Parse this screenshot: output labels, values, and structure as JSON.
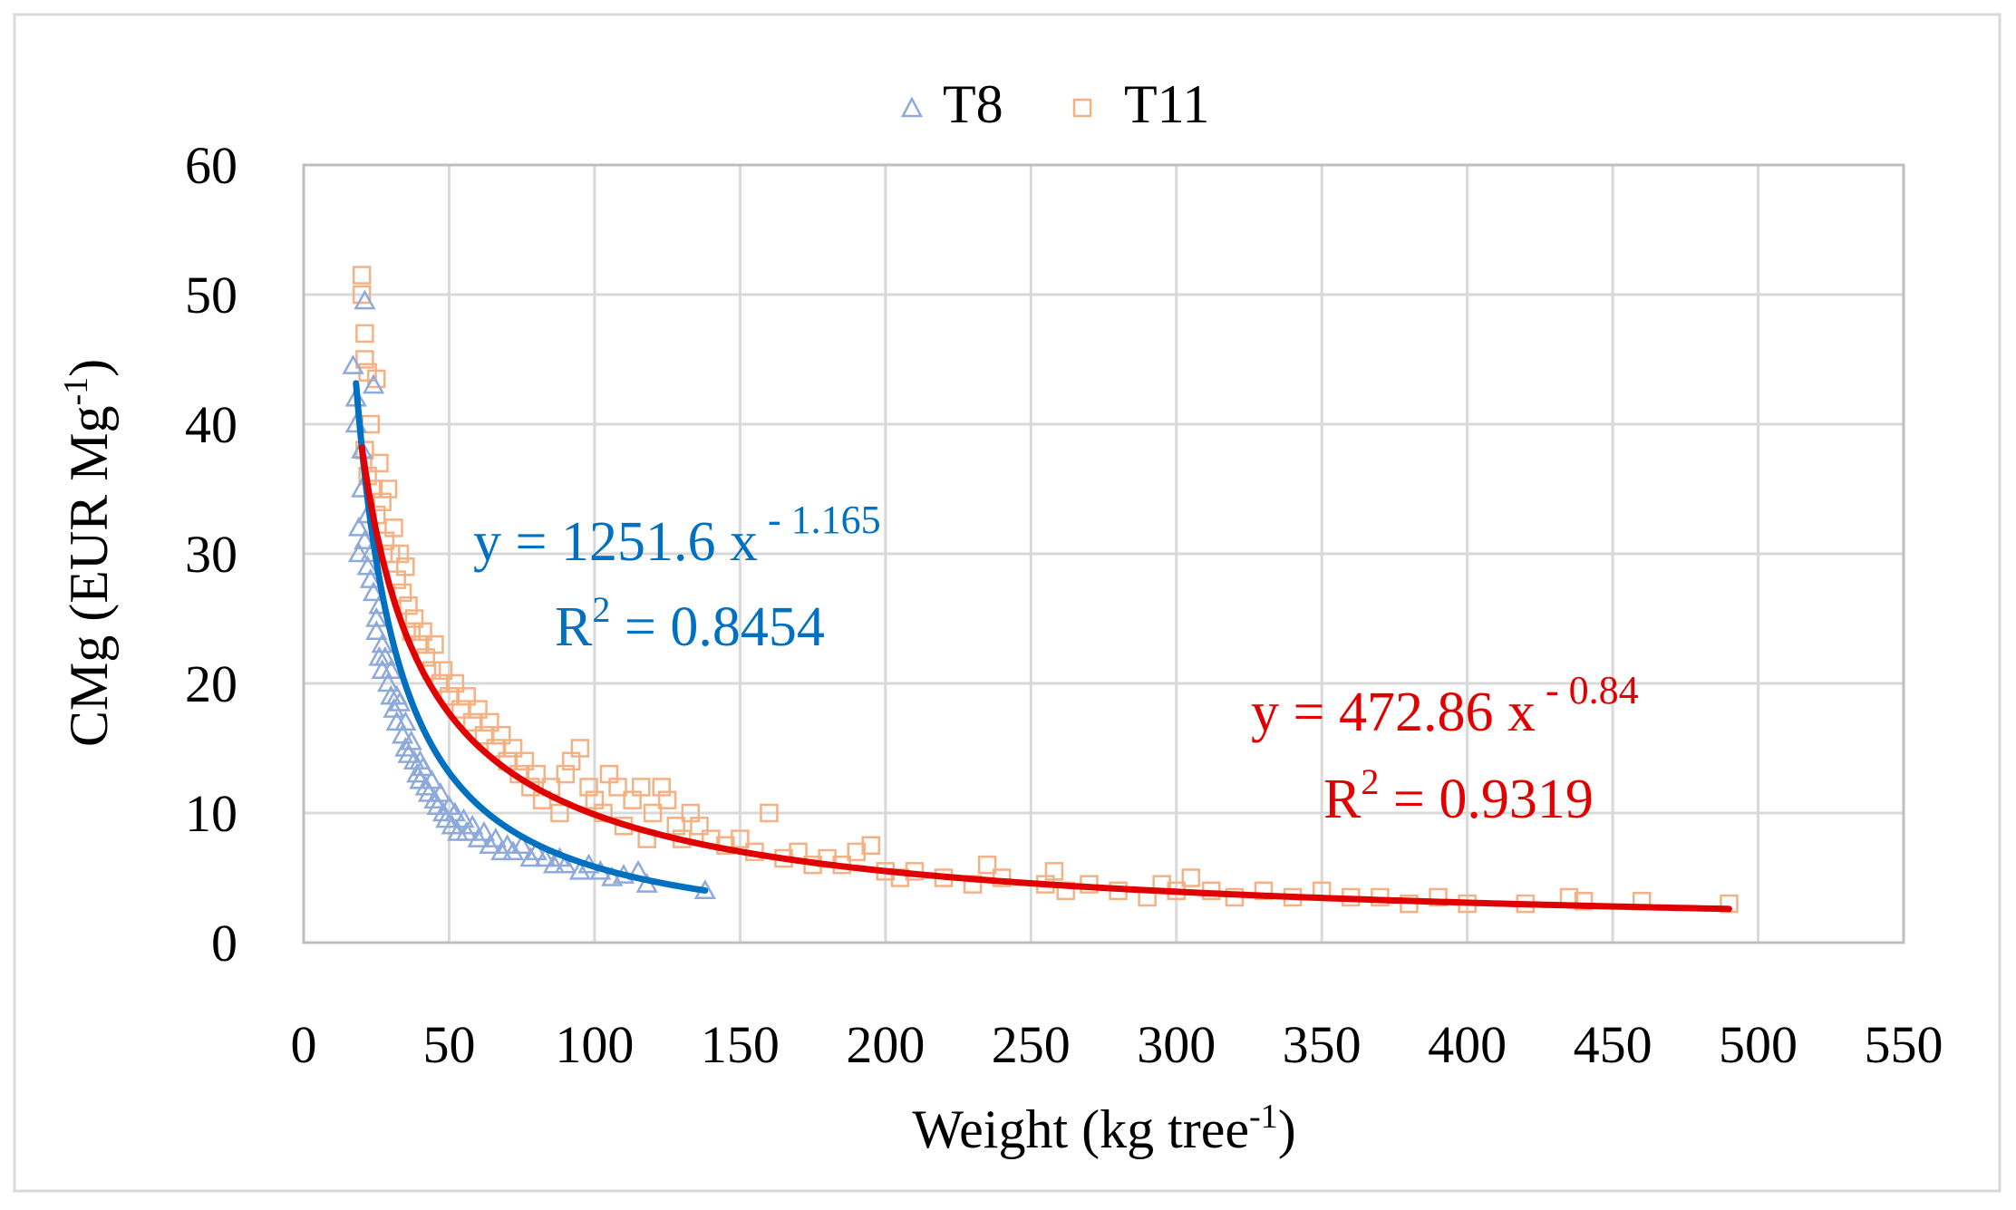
{
  "chart_data": {
    "type": "scatter",
    "title": "",
    "xlabel": "Weight (kg tree",
    "xlabel_sup": "-1",
    "xlabel_end": ")",
    "ylabel": "CMg (EUR Mg",
    "ylabel_sup": "-1",
    "ylabel_end": ")",
    "xlim": [
      0,
      550
    ],
    "ylim": [
      0,
      60
    ],
    "xticks": [
      "0",
      "50",
      "100",
      "150",
      "200",
      "250",
      "300",
      "350",
      "400",
      "450",
      "500",
      "550"
    ],
    "yticks": [
      "0",
      "10",
      "20",
      "30",
      "40",
      "50",
      "60"
    ],
    "grid": true,
    "legend_position": "top-center",
    "series": [
      {
        "name": "T8",
        "marker": "triangle",
        "color": "#8eaadb",
        "trend_color": "#0070c0",
        "trend": {
          "coef": 1251.6,
          "exp": -1.165,
          "x_from": 18,
          "x_to": 138
        },
        "equation_main": "y = 1251.6 x",
        "equation_sup": " - 1.165",
        "r2_label": "R",
        "r2_sup": "2",
        "r2_value": " = 0.8454",
        "points": [
          [
            17,
            44.5
          ],
          [
            18,
            42
          ],
          [
            18,
            40
          ],
          [
            19,
            32
          ],
          [
            19,
            30
          ],
          [
            20,
            38
          ],
          [
            20,
            35
          ],
          [
            21,
            49.5
          ],
          [
            21,
            31
          ],
          [
            22,
            29
          ],
          [
            22,
            33
          ],
          [
            23,
            28
          ],
          [
            23,
            30
          ],
          [
            24,
            27
          ],
          [
            24,
            43
          ],
          [
            25,
            25
          ],
          [
            25,
            24
          ],
          [
            26,
            26
          ],
          [
            26,
            22
          ],
          [
            27,
            23
          ],
          [
            27,
            21
          ],
          [
            28,
            22
          ],
          [
            29,
            20
          ],
          [
            30,
            21
          ],
          [
            30,
            19
          ],
          [
            31,
            18
          ],
          [
            32,
            19
          ],
          [
            32,
            17
          ],
          [
            33,
            18.5
          ],
          [
            34,
            16
          ],
          [
            35,
            17
          ],
          [
            35,
            15
          ],
          [
            36,
            14.5
          ],
          [
            37,
            15.5
          ],
          [
            38,
            14
          ],
          [
            39,
            13
          ],
          [
            40,
            12.5
          ],
          [
            40,
            14
          ],
          [
            41,
            13.5
          ],
          [
            42,
            12
          ],
          [
            43,
            11.5
          ],
          [
            44,
            12.5
          ],
          [
            45,
            11
          ],
          [
            46,
            10.5
          ],
          [
            47,
            11.5
          ],
          [
            48,
            10
          ],
          [
            49,
            9.5
          ],
          [
            50,
            10.5
          ],
          [
            51,
            9
          ],
          [
            52,
            10
          ],
          [
            53,
            8.5
          ],
          [
            55,
            9.5
          ],
          [
            56,
            8.5
          ],
          [
            58,
            9
          ],
          [
            60,
            8
          ],
          [
            62,
            8.5
          ],
          [
            64,
            7.5
          ],
          [
            66,
            8
          ],
          [
            68,
            7
          ],
          [
            70,
            7.5
          ],
          [
            72,
            7
          ],
          [
            75,
            7.5
          ],
          [
            78,
            6.5
          ],
          [
            80,
            7
          ],
          [
            83,
            6.5
          ],
          [
            86,
            6
          ],
          [
            88,
            6.5
          ],
          [
            90,
            6
          ],
          [
            95,
            5.5
          ],
          [
            98,
            6
          ],
          [
            102,
            5.5
          ],
          [
            106,
            5
          ],
          [
            110,
            5.2
          ],
          [
            115,
            5.5
          ],
          [
            118,
            4.5
          ],
          [
            138,
            4
          ]
        ]
      },
      {
        "name": "T11",
        "marker": "square",
        "color": "#f4b183",
        "trend_color": "#e00000",
        "trend": {
          "coef": 472.86,
          "exp": -0.84,
          "x_from": 20,
          "x_to": 490
        },
        "equation_main": "y = 472.86 x",
        "equation_sup": " - 0.84",
        "r2_label": "R",
        "r2_sup": "2",
        "r2_value": " = 0.9319",
        "points": [
          [
            20,
            51.5
          ],
          [
            20,
            50
          ],
          [
            21,
            47
          ],
          [
            21,
            45
          ],
          [
            22,
            44
          ],
          [
            21,
            38
          ],
          [
            22,
            36
          ],
          [
            23,
            40
          ],
          [
            24,
            35
          ],
          [
            25,
            43.5
          ],
          [
            25,
            33
          ],
          [
            26,
            37
          ],
          [
            27,
            34
          ],
          [
            28,
            31
          ],
          [
            29,
            35
          ],
          [
            30,
            30
          ],
          [
            31,
            32
          ],
          [
            32,
            28
          ],
          [
            33,
            30
          ],
          [
            34,
            27
          ],
          [
            35,
            29
          ],
          [
            36,
            26
          ],
          [
            37,
            24
          ],
          [
            38,
            25
          ],
          [
            40,
            23
          ],
          [
            41,
            24
          ],
          [
            42,
            22
          ],
          [
            44,
            21
          ],
          [
            45,
            23
          ],
          [
            47,
            20
          ],
          [
            48,
            21
          ],
          [
            50,
            19
          ],
          [
            52,
            20
          ],
          [
            54,
            18
          ],
          [
            56,
            19
          ],
          [
            58,
            17
          ],
          [
            60,
            18
          ],
          [
            62,
            16
          ],
          [
            64,
            17
          ],
          [
            66,
            15
          ],
          [
            68,
            16
          ],
          [
            70,
            14
          ],
          [
            72,
            15
          ],
          [
            74,
            13
          ],
          [
            76,
            14
          ],
          [
            78,
            12
          ],
          [
            80,
            13
          ],
          [
            82,
            11
          ],
          [
            85,
            12
          ],
          [
            88,
            10
          ],
          [
            90,
            13
          ],
          [
            92,
            14
          ],
          [
            95,
            15
          ],
          [
            98,
            12
          ],
          [
            100,
            11
          ],
          [
            103,
            10
          ],
          [
            105,
            13
          ],
          [
            108,
            12
          ],
          [
            110,
            9
          ],
          [
            113,
            11
          ],
          [
            116,
            12
          ],
          [
            118,
            8
          ],
          [
            120,
            10
          ],
          [
            123,
            12
          ],
          [
            125,
            11
          ],
          [
            128,
            9
          ],
          [
            130,
            8
          ],
          [
            133,
            10
          ],
          [
            136,
            9
          ],
          [
            140,
            8
          ],
          [
            145,
            7.5
          ],
          [
            150,
            8
          ],
          [
            155,
            7
          ],
          [
            160,
            10
          ],
          [
            165,
            6.5
          ],
          [
            170,
            7
          ],
          [
            175,
            6
          ],
          [
            180,
            6.5
          ],
          [
            185,
            6
          ],
          [
            190,
            7
          ],
          [
            195,
            7.5
          ],
          [
            200,
            5.5
          ],
          [
            205,
            5
          ],
          [
            210,
            5.5
          ],
          [
            220,
            5
          ],
          [
            230,
            4.5
          ],
          [
            235,
            6
          ],
          [
            240,
            5
          ],
          [
            255,
            4.5
          ],
          [
            258,
            5.5
          ],
          [
            262,
            4
          ],
          [
            270,
            4.5
          ],
          [
            280,
            4
          ],
          [
            290,
            3.5
          ],
          [
            295,
            4.5
          ],
          [
            300,
            4
          ],
          [
            305,
            5
          ],
          [
            312,
            4
          ],
          [
            320,
            3.5
          ],
          [
            330,
            4
          ],
          [
            340,
            3.5
          ],
          [
            350,
            4
          ],
          [
            360,
            3.5
          ],
          [
            370,
            3.5
          ],
          [
            380,
            3
          ],
          [
            390,
            3.5
          ],
          [
            400,
            3
          ],
          [
            420,
            3
          ],
          [
            435,
            3.5
          ],
          [
            440,
            3.2
          ],
          [
            460,
            3.2
          ],
          [
            490,
            3
          ]
        ]
      }
    ]
  }
}
